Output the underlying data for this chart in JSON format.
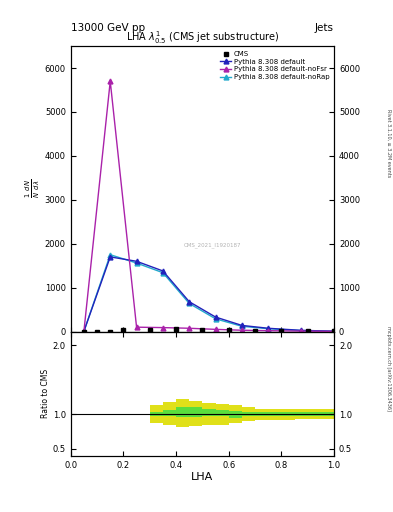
{
  "title_top": "13000 GeV pp",
  "title_right": "Jets",
  "plot_title": "LHA $\\lambda^{1}_{0.5}$ (CMS jet substructure)",
  "xlabel": "LHA",
  "ylabel_main": "1 / mathrm{N} d mathrm{N} / d lambda",
  "ylabel_ratio": "Ratio to CMS",
  "watermark": "CMS_2021_I1920187",
  "right_label_top": "Rivet 3.1.10, ≥ 3.2M events",
  "right_label_bot": "mcplots.cern.ch [arXiv:1306.3436]",
  "cms_x": [
    0.05,
    0.1,
    0.15,
    0.2,
    0.3,
    0.4,
    0.5,
    0.6,
    0.7,
    0.8,
    0.9,
    1.0
  ],
  "cms_y": [
    0,
    0,
    0,
    30,
    45,
    50,
    40,
    30,
    20,
    10,
    5,
    2
  ],
  "pythia_default_x": [
    0.05,
    0.15,
    0.25,
    0.35,
    0.45,
    0.55,
    0.65,
    0.75,
    0.875,
    1.0
  ],
  "pythia_default_y": [
    5,
    1700,
    1600,
    1380,
    680,
    330,
    140,
    75,
    28,
    8
  ],
  "pythia_nofsr_x": [
    0.05,
    0.15,
    0.25,
    0.35,
    0.45,
    0.55,
    0.65,
    0.75,
    0.875,
    1.0
  ],
  "pythia_nofsr_y": [
    5,
    5700,
    100,
    90,
    75,
    50,
    30,
    20,
    10,
    5
  ],
  "pythia_norap_x": [
    0.05,
    0.15,
    0.25,
    0.35,
    0.45,
    0.55,
    0.65,
    0.75,
    0.875,
    1.0
  ],
  "pythia_norap_y": [
    5,
    1750,
    1560,
    1340,
    640,
    290,
    120,
    65,
    22,
    7
  ],
  "ratio_green_x": [
    0.0,
    0.2,
    0.25,
    0.3,
    0.35,
    0.4,
    0.45,
    0.5,
    0.55,
    0.6,
    0.65,
    0.7,
    0.75,
    0.8,
    0.85,
    0.9,
    0.95,
    1.0
  ],
  "ratio_green_lo": [
    1.0,
    1.0,
    1.0,
    0.97,
    0.97,
    0.96,
    0.96,
    0.97,
    0.97,
    0.95,
    0.97,
    0.97,
    0.97,
    0.97,
    0.97,
    0.97,
    0.97,
    0.97
  ],
  "ratio_green_hi": [
    1.0,
    1.0,
    1.0,
    1.04,
    1.06,
    1.1,
    1.1,
    1.08,
    1.06,
    1.05,
    1.03,
    1.03,
    1.03,
    1.03,
    1.03,
    1.04,
    1.04,
    1.05
  ],
  "ratio_yellow_x": [
    0.0,
    0.2,
    0.25,
    0.3,
    0.35,
    0.4,
    0.45,
    0.5,
    0.55,
    0.6,
    0.65,
    0.7,
    0.75,
    0.8,
    0.85,
    0.9,
    0.95,
    1.0
  ],
  "ratio_yellow_lo": [
    1.0,
    1.0,
    1.0,
    0.88,
    0.85,
    0.82,
    0.83,
    0.85,
    0.85,
    0.87,
    0.9,
    0.92,
    0.92,
    0.92,
    0.93,
    0.93,
    0.93,
    0.93
  ],
  "ratio_yellow_hi": [
    1.0,
    1.0,
    1.0,
    1.13,
    1.18,
    1.22,
    1.2,
    1.17,
    1.15,
    1.13,
    1.1,
    1.08,
    1.08,
    1.08,
    1.07,
    1.07,
    1.07,
    1.08
  ],
  "color_cms": "#000000",
  "color_default": "#2222bb",
  "color_nofsr": "#aa22aa",
  "color_norap": "#22aacc",
  "color_green": "#44dd44",
  "color_yellow": "#dddd00",
  "ylim_main": [
    0,
    6500
  ],
  "ylim_ratio": [
    0.4,
    2.2
  ],
  "xlim": [
    0.0,
    1.0
  ],
  "yticks_main": [
    0,
    1000,
    2000,
    3000,
    4000,
    5000,
    6000
  ],
  "yticks_ratio": [
    0.5,
    1.0,
    2.0
  ]
}
